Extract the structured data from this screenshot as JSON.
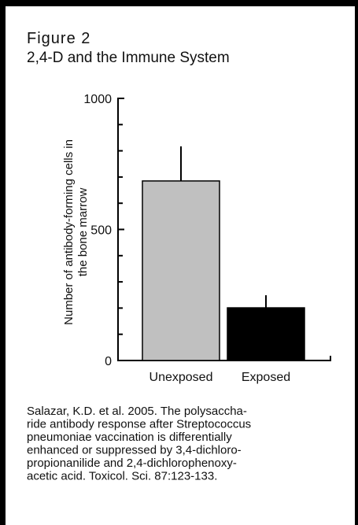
{
  "chart_data": {
    "type": "bar",
    "title": "Figure 2",
    "subtitle": "2,4-D and the Immune System",
    "ylabel": [
      "Number of antibody-forming cells in",
      "the bone marrow"
    ],
    "categories": [
      "Unexposed",
      "Exposed"
    ],
    "values": [
      685,
      201
    ],
    "errors": [
      132,
      48
    ],
    "colors": [
      "#c0c0c0",
      "#000000"
    ],
    "ylim": [
      0,
      1000
    ],
    "yticks": [
      0,
      500,
      1000
    ],
    "yticks_minor": [
      100,
      200,
      300,
      400,
      600,
      700,
      800,
      900
    ],
    "caption": [
      "Salazar, K.D. et al. 2005. The polysaccha-",
      "ride antibody response after Streptococcus",
      "pneumoniae vaccination is differentially",
      "enhanced or suppressed by 3,4-dichloro-",
      "propionanilide and 2,4-dichlorophenoxy-",
      "acetic acid. Toxicol. Sci. 87:123-133."
    ]
  }
}
